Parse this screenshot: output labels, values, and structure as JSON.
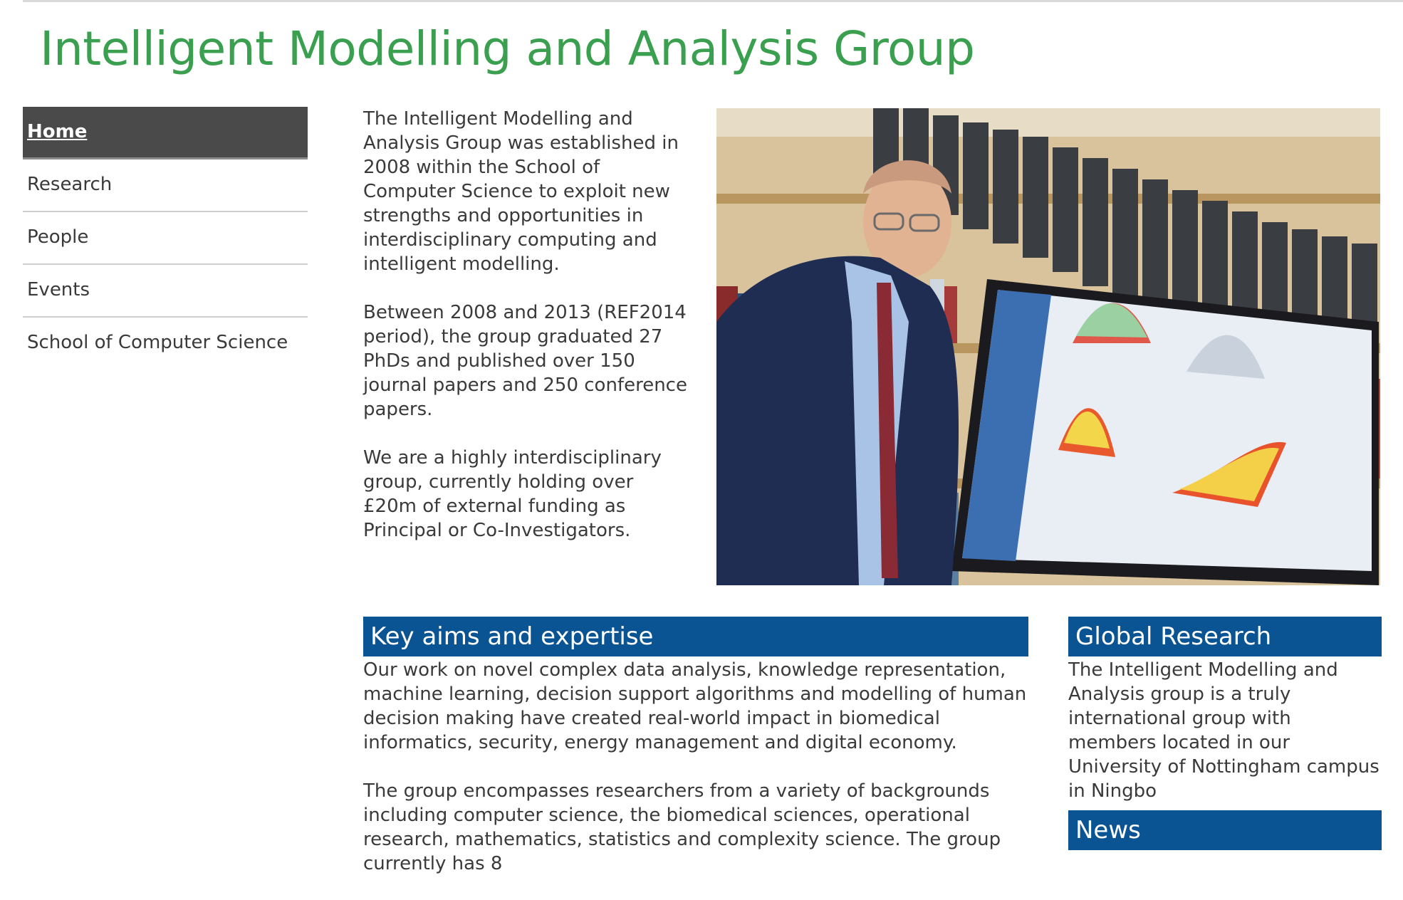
{
  "header": {
    "title": "Intelligent Modelling and Analysis Group"
  },
  "nav": {
    "items": [
      {
        "label": "Home",
        "active": true
      },
      {
        "label": "Research"
      },
      {
        "label": "People"
      },
      {
        "label": "Events"
      },
      {
        "label": "School of Computer Science"
      }
    ]
  },
  "intro": {
    "paragraphs": [
      "The Intelligent Modelling and Analysis Group was established in 2008 within the School of Computer Science to exploit new strengths and opportunities in interdisciplinary computing and intelligent modelling.",
      "Between 2008 and 2013 (REF2014 period), the group graduated 27 PhDs and published over 150 journal papers and 250 conference papers.",
      "We are a highly interdisciplinary group, currently holding over £20m of external funding as Principal or Co-Investigators."
    ]
  },
  "aims": {
    "heading": "Key aims and expertise",
    "paragraphs": [
      "Our work on novel complex data analysis, knowledge representation, machine learning, decision support algorithms and modelling of human decision making have created real-world impact in biomedical informatics, security, energy management and digital economy.",
      "The group encompasses researchers from a variety of backgrounds including computer science, the biomedical sciences, operational research, mathematics, statistics and complexity science. The group currently has 8"
    ]
  },
  "global": {
    "heading": "Global Research",
    "text": "The Intelligent Modelling and Analysis group is a truly international group with members located in our University of Nottingham campus in Ningbo"
  },
  "news": {
    "heading": "News"
  },
  "colors": {
    "title_green": "#3aa050",
    "section_blue": "#0b5494",
    "nav_active": "#4a4a4a"
  }
}
